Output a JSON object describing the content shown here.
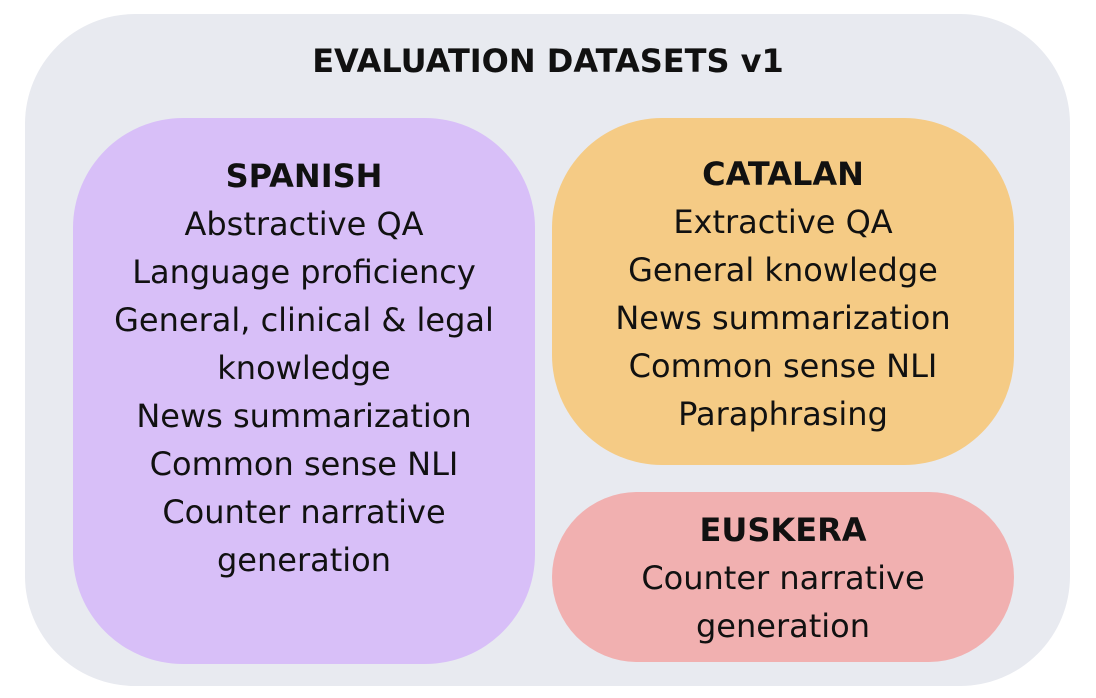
{
  "title": "EVALUATION DATASETS v1",
  "groups": [
    {
      "name": "SPANISH",
      "items": [
        "Abstractive QA",
        "Language proficiency",
        "General, clinical & legal\nknowledge",
        "News summarization",
        "Common sense NLI",
        "Counter narrative\ngeneration"
      ],
      "color": "#d8bff8"
    },
    {
      "name": "CATALAN",
      "items": [
        "Extractive QA",
        "General knowledge",
        "News summarization",
        "Common sense NLI",
        "Paraphrasing"
      ],
      "color": "#f5cb85"
    },
    {
      "name": "EUSKERA",
      "items": [
        "Counter narrative\ngeneration"
      ],
      "color": "#f1b0b0"
    }
  ]
}
